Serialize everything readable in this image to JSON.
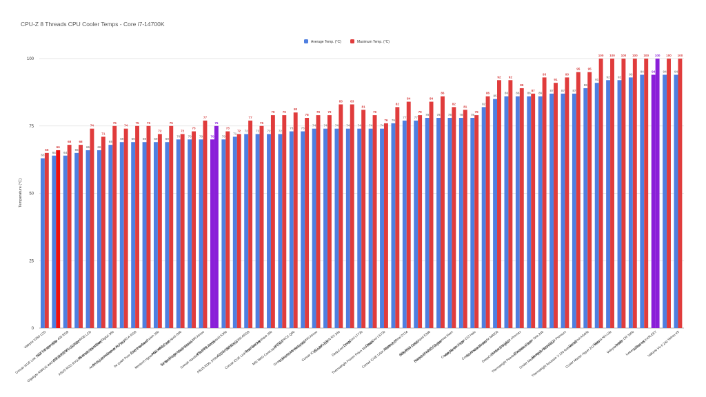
{
  "chart_data": {
    "type": "bar",
    "title": "CPU-Z 8 Threads CPU Cooler Temps - Core i7-14700K",
    "xlabel": "",
    "ylabel": "Temperature (°C)",
    "ylim": [
      0,
      100
    ],
    "yticks": [
      0,
      25,
      50,
      75,
      100
    ],
    "grid": true,
    "legend_position": "top-center",
    "colors": {
      "average": "#4f7fe0",
      "maximum": "#e03c3c",
      "highlight": "#8a1fd8",
      "highlight_red": "#ee1111"
    },
    "highlighted_categories": [
      15,
      54
    ],
    "highlighted_max_categories": [
      1
    ],
    "categories": [
      "Valkyrie V360 LCD",
      "Corsair iCUE Link Titan RX 420 RGB",
      "NZXT Kraken Elite 420 RGB",
      "Gigabyte AORUS WATERFORCE X II 360 ICE",
      "ASUS PRIME LC 360 ARGB LCD",
      "ASUS ROG RYUJIN III 360 EXTREME",
      "Montech HyperFlow Digital 360",
      "Arctic Liquid Freezer III Pro 360",
      "Arctic Liquid Freezer III Pro 360 A-RGB",
      "be quiet! Pure Loop 2 360mm",
      "Enermax Aquafusion 360",
      "Montech HyperFlow ARGB 360",
      "MSI MAG CoreLiquid I360",
      "be quiet! Light Loop 360mm",
      "Cooler Master MasterLiquid 360 Atmos",
      "Corsair Nautilus 360 RS ARGB",
      "MSI MPG CoreLiquid K360",
      "ASUS ROG STRIX LC III 360 ARGB",
      "ASUS PRIME LC 360 ARGB",
      "Corsair iCUE Link Titan 360 RX",
      "DeepCool Mystique 360",
      "MSI MAG CoreLiquid E360",
      "HYTE THICC Q60",
      "Lian Li GA II Trinity 360",
      "Cooler Master MasterLiquid 240 Atmos",
      "Corsair A115",
      "Corsair iCUE LINK TITAN RX 240",
      "DeepCool LT720",
      "DeepCool LT720",
      "Thermalright Frozen Prism 360 Black",
      "DeepCool LS720",
      "Corsair iCUE LINK H150i LCD",
      "Montech Metal DT24",
      "DeepCool LS520",
      "MSI MAG CoreLiquid E360",
      "DeepCool AK620 Digital",
      "Noctua NH-D15 G2 chromax.black",
      "Valkyrie Vk-II 120",
      "Cooler Master Hyper 212 Halo",
      "NZXT Kraken 360",
      "Cooler Master MasterAir MA824",
      "DeepCool AK400 Digital",
      "Noctua NH-U12A chromax",
      "Thermalright Peerless Assassin 120",
      "Phanteks Glacier One 240",
      "Cooler Master Hyper 212 Black",
      "Montech Metal DT24 Premium",
      "Thermalright Assassin X 120 Refined SE",
      "DeepCool AG400",
      "Cooler Master Hyper 212 Halo",
      "Noctua NH-L9a",
      "Valkyrie A360",
      "Jonsbo CR-1000",
      "Vetroo V5",
      "Iceberg Thermal IceSLEET",
      "Valkyrie Vk-II 240",
      "Vetroo V5"
    ],
    "series": [
      {
        "name": "Average Temp. (°C)",
        "values": [
          63,
          64,
          64,
          65,
          66,
          66,
          68,
          69,
          69,
          69,
          69,
          69,
          70,
          70,
          70,
          70,
          70,
          71,
          72,
          72,
          72,
          72,
          73,
          73,
          74,
          74,
          74,
          74,
          74,
          74,
          74,
          76,
          77,
          77,
          78,
          78,
          78,
          78,
          78,
          82,
          85,
          86,
          86,
          86,
          86,
          87,
          87,
          87,
          89,
          91,
          92,
          92,
          93,
          94,
          94,
          94,
          94
        ]
      },
      {
        "name": "Maximum Temp. (°C)",
        "values": [
          65,
          66,
          68,
          68,
          74,
          71,
          75,
          74,
          75,
          75,
          72,
          75,
          72,
          73,
          77,
          75,
          73,
          72,
          77,
          75,
          79,
          79,
          80,
          78,
          79,
          79,
          83,
          83,
          81,
          79,
          76,
          82,
          84,
          79,
          84,
          86,
          82,
          81,
          79,
          86,
          92,
          92,
          89,
          87,
          93,
          91,
          93,
          95,
          95,
          100,
          100,
          100,
          100,
          100,
          100,
          100,
          100
        ]
      }
    ]
  }
}
